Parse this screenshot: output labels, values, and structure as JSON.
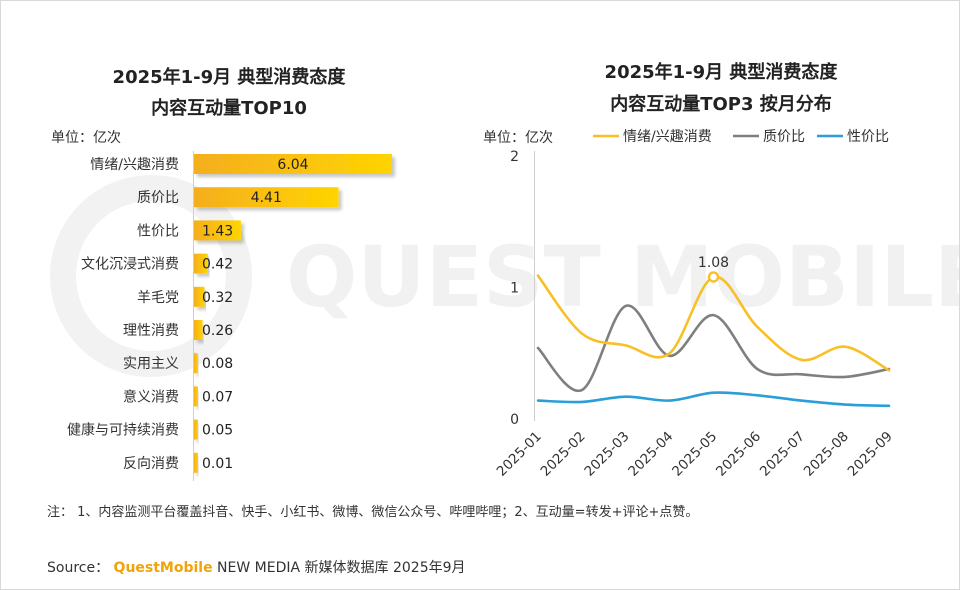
{
  "watermark": "QUEST MOBILE",
  "footer": {
    "note": "注：  1、内容监测平台覆盖抖音、快手、小红书、微博、微信公众号、哔哩哔哩；2、互动量=转发+评论+点赞。",
    "source_label": "Source：",
    "source_brand": "QuestMobile",
    "source_rest": " NEW MEDIA 新媒体数据库 2025年9月"
  },
  "colors": {
    "bar_start": "#F5AE1E",
    "bar_end": "#FFD400",
    "emotional": "#F9BF27",
    "quality_price": "#7F7F7F",
    "cost_perf": "#2B9ED7",
    "axis": "#CFCFCF",
    "watermark": "#F1F1F1"
  },
  "chart_data": [
    {
      "type": "bar",
      "orientation": "horizontal",
      "title_line1": "2025年1-9月 典型消费态度",
      "title_line2": "内容互动量TOP10",
      "unit_label": "单位：亿次",
      "categories": [
        "情绪/兴趣消费",
        "质价比",
        "性价比",
        "文化沉浸式消费",
        "羊毛党",
        "理性消费",
        "实用主义",
        "意义消费",
        "健康与可持续消费",
        "反向消费"
      ],
      "values": [
        6.04,
        4.41,
        1.43,
        0.42,
        0.32,
        0.26,
        0.08,
        0.07,
        0.05,
        0.01
      ],
      "value_labels": [
        "6.04",
        "4.41",
        "1.43",
        "0.42",
        "0.32",
        "0.26",
        "0.08",
        "0.07",
        "0.05",
        "0.01"
      ],
      "xlim": [
        0,
        6.04
      ]
    },
    {
      "type": "line",
      "title_line1": "2025年1-9月 典型消费态度",
      "title_line2": "内容互动量TOP3 按月分布",
      "unit_label": "单位：亿次",
      "x": [
        "2025-01",
        "2025-02",
        "2025-03",
        "2025-04",
        "2025-05",
        "2025-06",
        "2025-07",
        "2025-08",
        "2025-09"
      ],
      "ylim": [
        0,
        2
      ],
      "yticks": [
        "0",
        "1",
        "2"
      ],
      "series": [
        {
          "name": "情绪/兴趣消费",
          "color": "#F9BF27",
          "values": [
            1.09,
            0.65,
            0.56,
            0.5,
            1.08,
            0.7,
            0.45,
            0.55,
            0.37
          ]
        },
        {
          "name": "质价比",
          "color": "#7F7F7F",
          "values": [
            0.54,
            0.22,
            0.86,
            0.48,
            0.79,
            0.38,
            0.34,
            0.32,
            0.38
          ]
        },
        {
          "name": "性价比",
          "color": "#2B9ED7",
          "values": [
            0.14,
            0.13,
            0.17,
            0.14,
            0.2,
            0.18,
            0.14,
            0.11,
            0.1
          ]
        }
      ],
      "annotation": {
        "label": "1.08",
        "series": "情绪/兴趣消费",
        "x": "2025-05"
      }
    }
  ]
}
